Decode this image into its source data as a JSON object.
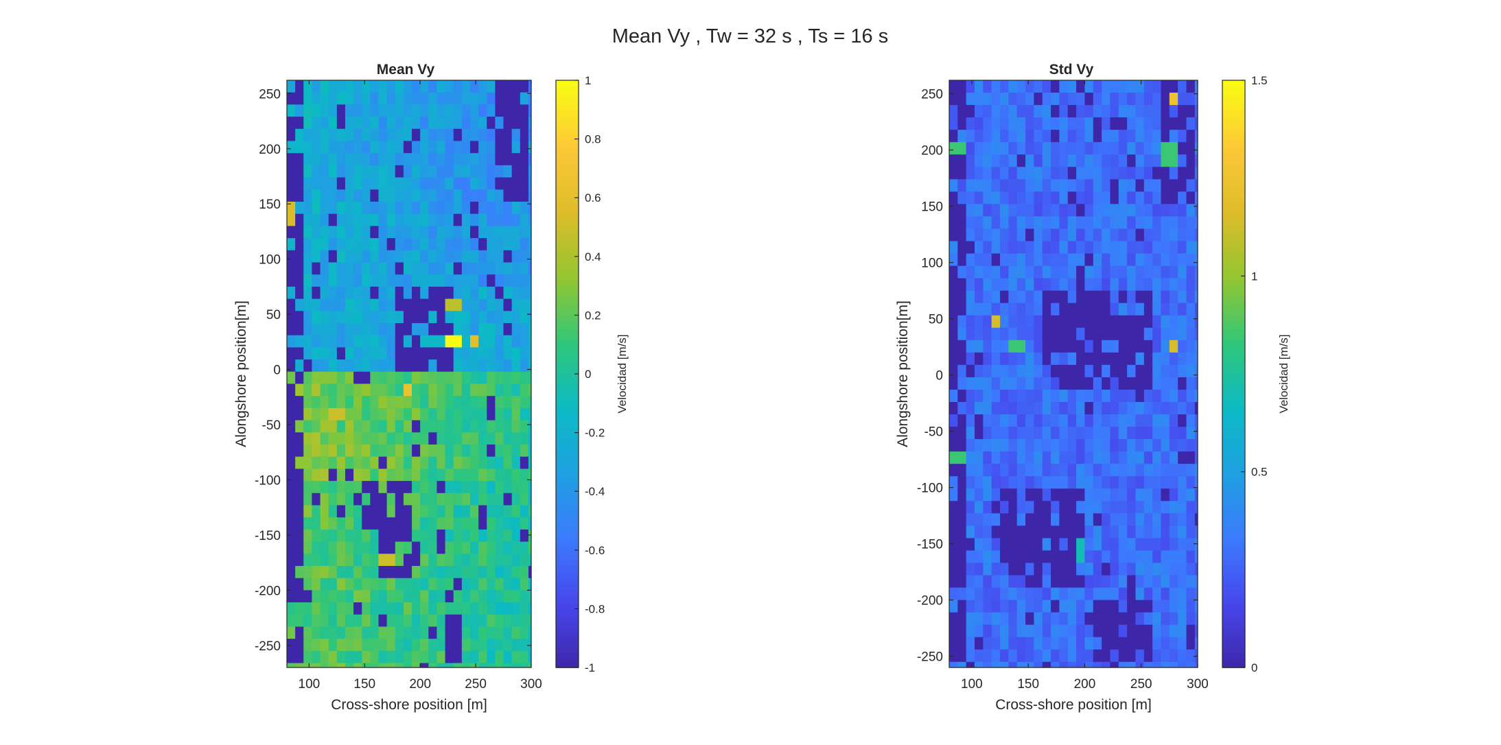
{
  "figure_title": "Mean Vy , Tw = 32 s , Ts = 16 s",
  "colormap": [
    "#3e26a8",
    "#4746eb",
    "#3c7afe",
    "#1fa0e1",
    "#0cbac4",
    "#30c67a",
    "#93c631",
    "#ddbc2a",
    "#fdc936",
    "#f9fb15"
  ],
  "chart_data": [
    {
      "type": "heatmap",
      "title": "Mean Vy",
      "xlabel": "Cross-shore position [m]",
      "ylabel": "Alongshore position[m]",
      "xlim": [
        80,
        300
      ],
      "ylim": [
        -270,
        262
      ],
      "xticks": [
        "100",
        "150",
        "200",
        "250",
        "300"
      ],
      "xtick_values": [
        100,
        150,
        200,
        250,
        300
      ],
      "yticks": [
        "250",
        "200",
        "150",
        "100",
        "50",
        "0",
        "-50",
        "-100",
        "-150",
        "-200",
        "-250"
      ],
      "ytick_values": [
        250,
        200,
        150,
        100,
        50,
        0,
        -50,
        -100,
        -150,
        -200,
        -250
      ],
      "grid": false,
      "cell_size_m": [
        7.5,
        11
      ],
      "clim": [
        -1,
        1
      ],
      "colorbar_label": "Velocidad [m/s]",
      "colorbar_ticks": [
        "1",
        "0.8",
        "0.6",
        "0.4",
        "0.2",
        "0",
        "-0.2",
        "-0.4",
        "-0.6",
        "-0.8",
        "-1"
      ],
      "colorbar_tick_values": [
        1,
        0.8,
        0.6,
        0.4,
        0.2,
        0,
        -0.2,
        -0.4,
        -0.6,
        -0.8,
        -1
      ],
      "seed": 7,
      "dark_regions": [
        {
          "x": [
            80,
            92
          ],
          "y": [
            -270,
            262
          ]
        },
        {
          "x": [
            178,
            228
          ],
          "y": [
            0,
            70
          ]
        },
        {
          "x": [
            148,
            190
          ],
          "y": [
            -150,
            -100
          ]
        },
        {
          "x": [
            160,
            200
          ],
          "y": [
            -190,
            -150
          ]
        },
        {
          "x": [
            270,
            300
          ],
          "y": [
            150,
            262
          ]
        },
        {
          "x": [
            220,
            240
          ],
          "y": [
            -270,
            -200
          ]
        }
      ],
      "hot_spots": [
        {
          "x": 230,
          "y": 25,
          "v": 1.0
        },
        {
          "x": 250,
          "y": 25,
          "v": 0.6
        },
        {
          "x": 190,
          "y": -15,
          "v": 0.65
        },
        {
          "x": 84,
          "y": 140,
          "v": 0.55
        },
        {
          "x": 125,
          "y": -40,
          "v": 0.5
        },
        {
          "x": 170,
          "y": -170,
          "v": 0.5
        },
        {
          "x": 230,
          "y": 55,
          "v": 0.45
        }
      ]
    },
    {
      "type": "heatmap",
      "title": "Std Vy",
      "xlabel": "Cross-shore position [m]",
      "ylabel": "Alongshore position[m]",
      "xlim": [
        80,
        300
      ],
      "ylim": [
        -260,
        262
      ],
      "xticks": [
        "100",
        "150",
        "200",
        "250",
        "300"
      ],
      "xtick_values": [
        100,
        150,
        200,
        250,
        300
      ],
      "yticks": [
        "250",
        "200",
        "150",
        "100",
        "50",
        "0",
        "-50",
        "-100",
        "-150",
        "-200",
        "-250"
      ],
      "ytick_values": [
        250,
        200,
        150,
        100,
        50,
        0,
        -50,
        -100,
        -150,
        -200,
        -250
      ],
      "grid": false,
      "cell_size_m": [
        7.5,
        11
      ],
      "clim": [
        0,
        1.5
      ],
      "colorbar_label": "Velocidad [m/s]",
      "colorbar_ticks": [
        "1.5",
        "1",
        "0.5",
        "0"
      ],
      "colorbar_tick_values": [
        1.5,
        1,
        0.5,
        0
      ],
      "seed": 13,
      "dark_regions": [
        {
          "x": [
            80,
            92
          ],
          "y": [
            -260,
            262
          ]
        },
        {
          "x": [
            160,
            260
          ],
          "y": [
            -10,
            70
          ]
        },
        {
          "x": [
            125,
            200
          ],
          "y": [
            -190,
            -100
          ]
        },
        {
          "x": [
            265,
            300
          ],
          "y": [
            150,
            262
          ]
        },
        {
          "x": [
            210,
            260
          ],
          "y": [
            -260,
            -200
          ]
        }
      ],
      "hot_spots": [
        {
          "x": 278,
          "y": 245,
          "v": 1.25
        },
        {
          "x": 120,
          "y": 45,
          "v": 1.15
        },
        {
          "x": 280,
          "y": 25,
          "v": 1.15
        },
        {
          "x": 275,
          "y": 195,
          "v": 0.85
        },
        {
          "x": 88,
          "y": 205,
          "v": 0.85
        },
        {
          "x": 140,
          "y": 25,
          "v": 0.85
        },
        {
          "x": 88,
          "y": -75,
          "v": 0.85
        },
        {
          "x": 195,
          "y": -155,
          "v": 0.7
        }
      ]
    }
  ]
}
